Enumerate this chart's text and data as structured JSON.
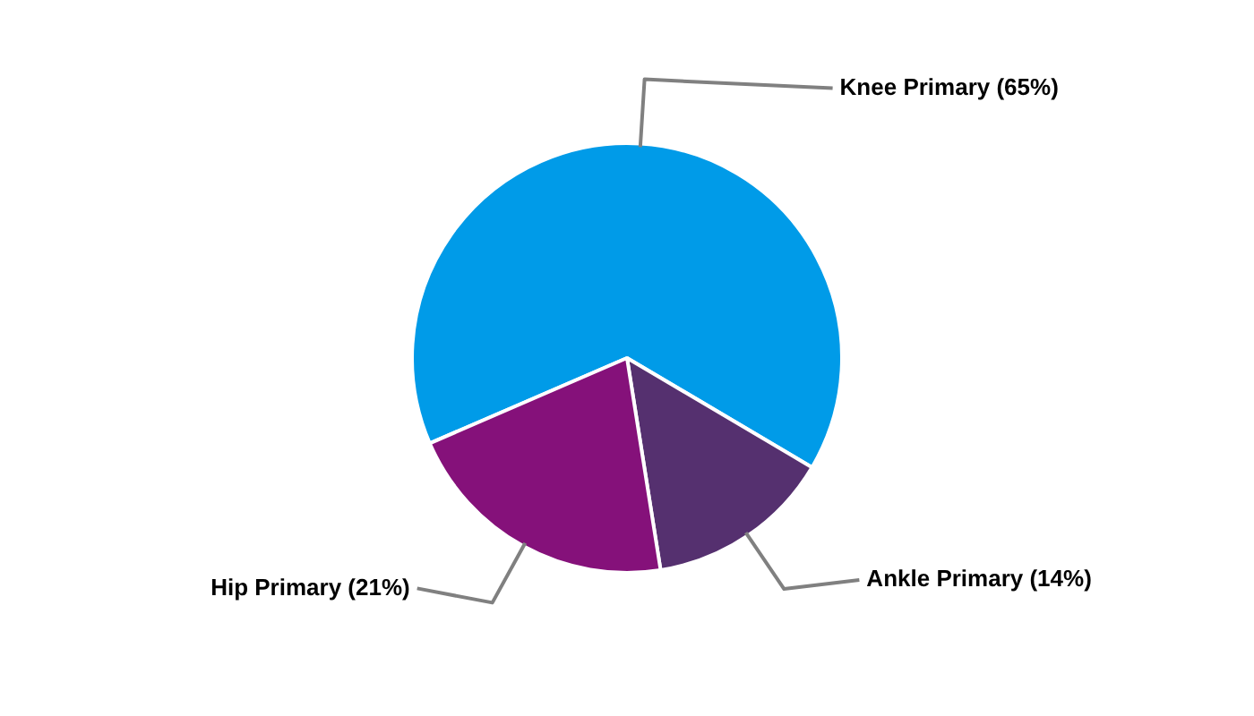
{
  "chart_data": {
    "type": "pie",
    "categories": [
      "Knee Primary (65%)",
      "Ankle Primary (14%)",
      "Hip Primary (21%)"
    ],
    "values": [
      65,
      14,
      21
    ],
    "colors": [
      "#009be8",
      "#55306f",
      "#85117a"
    ],
    "legend": false
  }
}
